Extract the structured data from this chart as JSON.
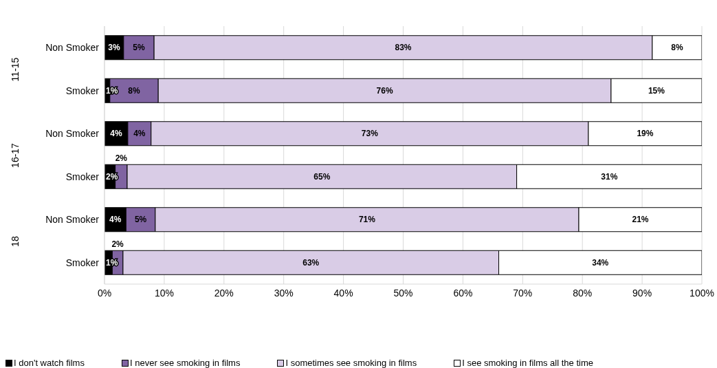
{
  "chart_data": {
    "type": "bar",
    "orientation": "horizontal",
    "stacked": true,
    "categories": [
      "Non Smoker",
      "Smoker",
      "Non Smoker",
      "Smoker",
      "Non Smoker",
      "Smoker"
    ],
    "annotations": [
      "11-15",
      "16-17",
      "18"
    ],
    "series": [
      {
        "name": "I don't watch films",
        "color": "#000000",
        "values": [
          3.2,
          0.9,
          3.9,
          1.8,
          3.6,
          1.3
        ],
        "value_labels": [
          "3%",
          "1%",
          "4%",
          "2%",
          "4%",
          "1%"
        ]
      },
      {
        "name": "I never see smoking in films",
        "color": "#8064a2",
        "values": [
          5.1,
          8.1,
          3.9,
          2.0,
          4.9,
          1.8
        ],
        "value_labels": [
          "5%",
          "8%",
          "4%",
          "2%",
          "5%",
          "2%"
        ]
      },
      {
        "name": "I sometimes see smoking in films",
        "color": "#d9cce6",
        "values": [
          83.4,
          75.8,
          73.2,
          65.2,
          70.9,
          62.9
        ],
        "value_labels": [
          "83%",
          "76%",
          "73%",
          "65%",
          "71%",
          "63%"
        ]
      },
      {
        "name": "I see smoking in films all the time",
        "color": "#ffffff",
        "values": [
          8.3,
          15.2,
          19.0,
          31.0,
          20.6,
          34.0
        ],
        "value_labels": [
          "8%",
          "15%",
          "19%",
          "31%",
          "21%",
          "34%"
        ]
      }
    ],
    "xlim": [
      0,
      100
    ],
    "xticks": [
      {
        "value": 0,
        "label": "0%"
      },
      {
        "value": 10,
        "label": "10%"
      },
      {
        "value": 20,
        "label": "20%"
      },
      {
        "value": 30,
        "label": "30%"
      },
      {
        "value": 40,
        "label": "40%"
      },
      {
        "value": 50,
        "label": "50%"
      },
      {
        "value": 60,
        "label": "60%"
      },
      {
        "value": 70,
        "label": "70%"
      },
      {
        "value": 80,
        "label": "80%"
      },
      {
        "value": 90,
        "label": "90%"
      },
      {
        "value": 100,
        "label": "100%"
      }
    ],
    "grid": "x",
    "legend": "bottom"
  }
}
